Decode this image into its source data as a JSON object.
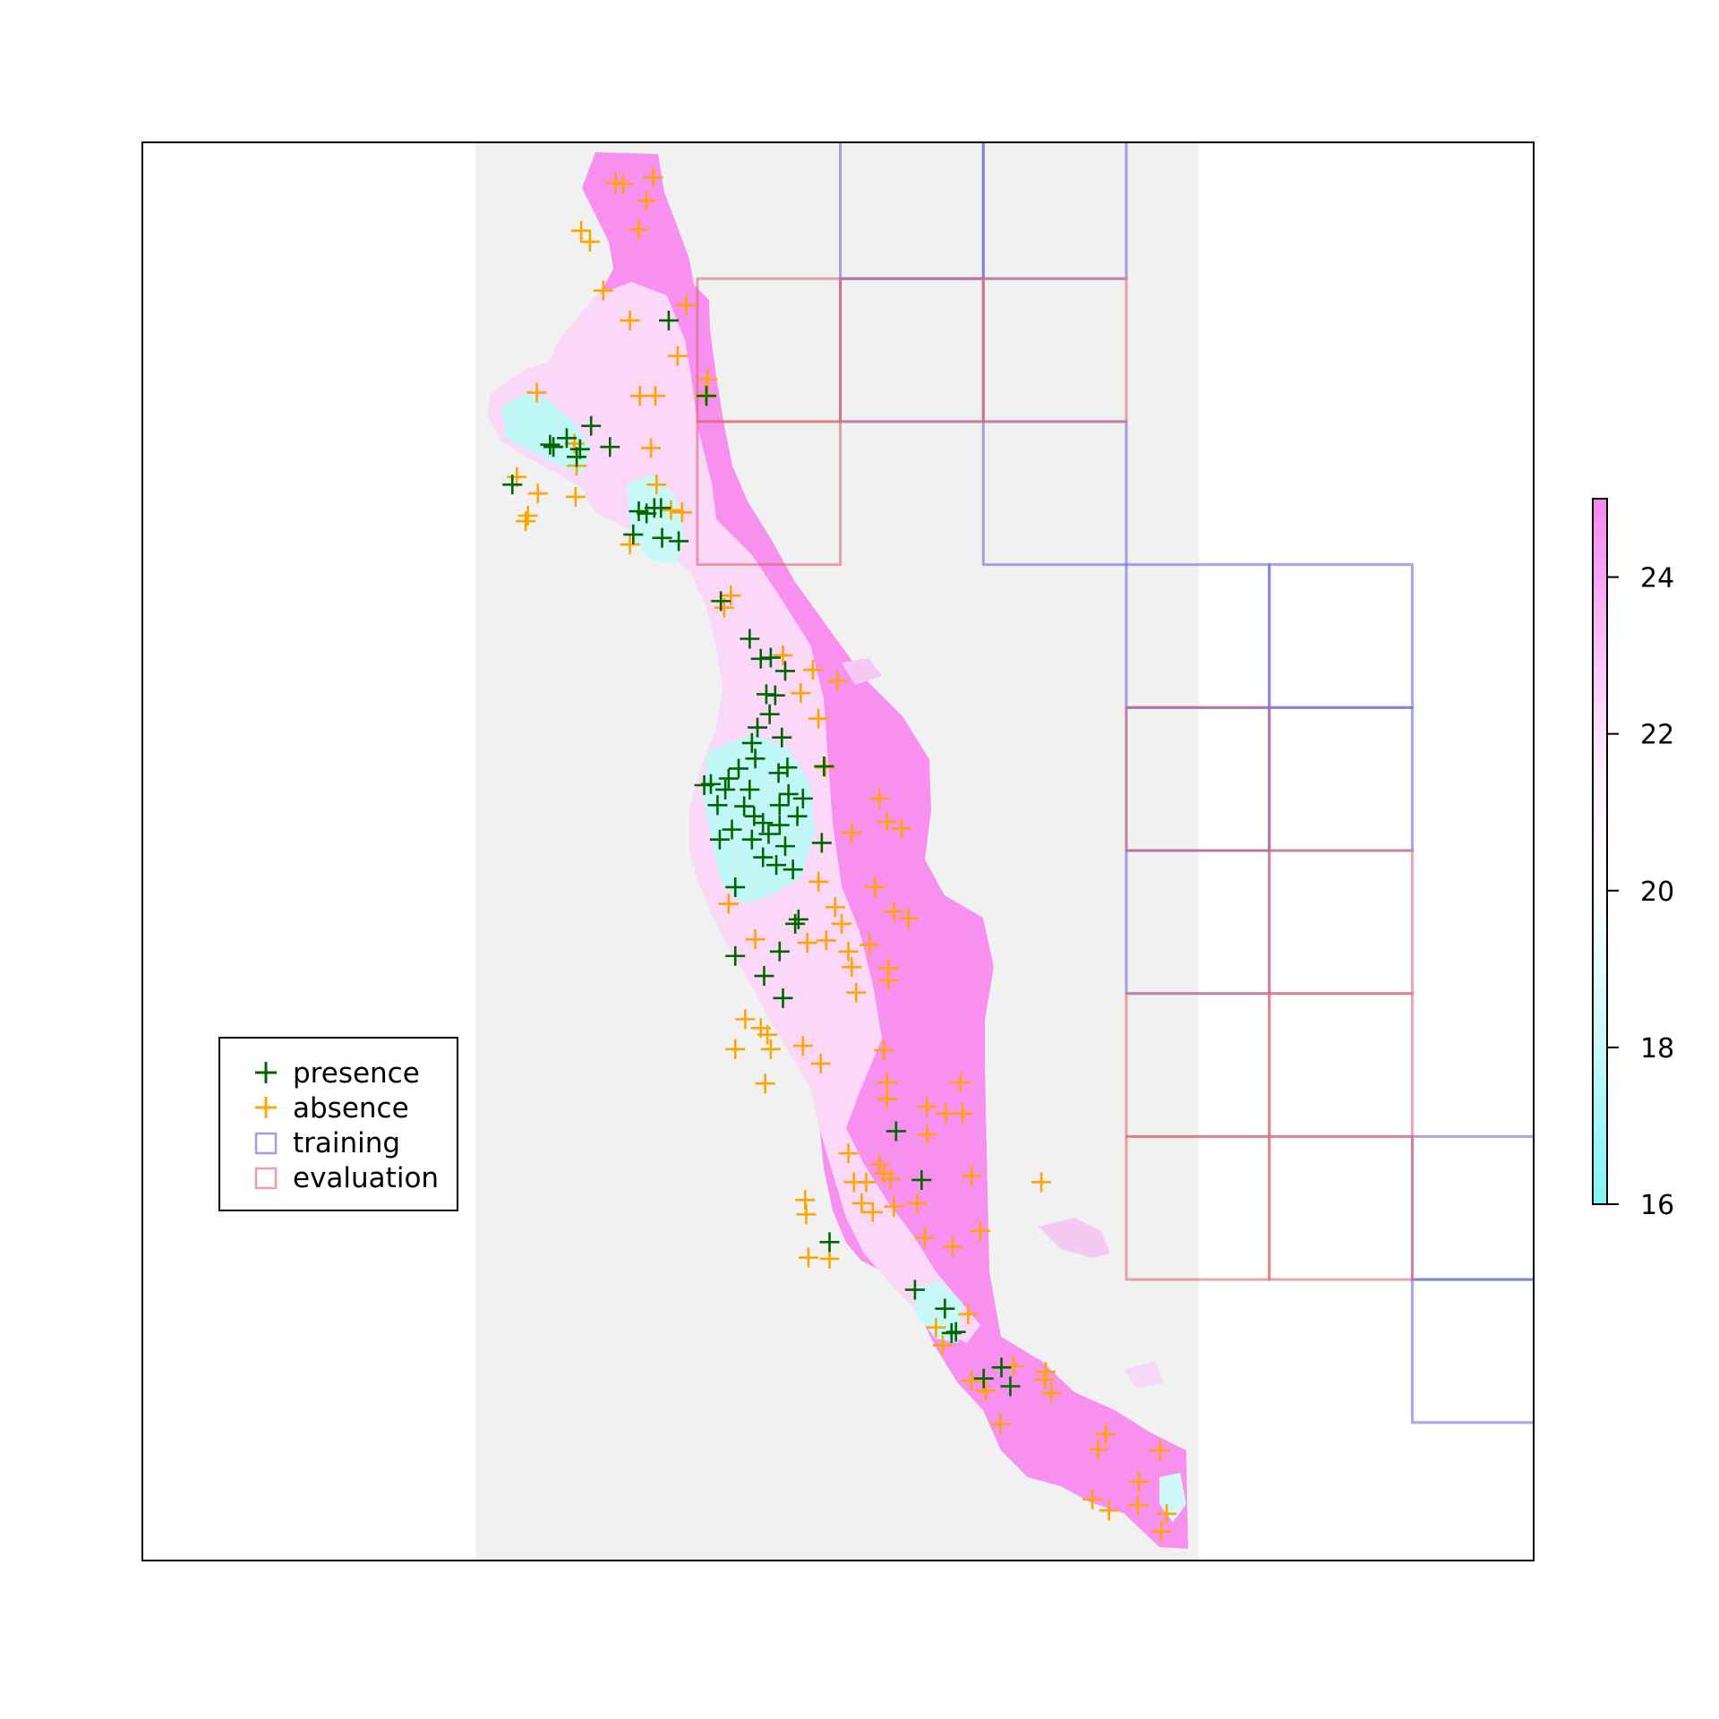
{
  "colors": {
    "presence": "#006400",
    "absence": "#ffa500",
    "training": "#6b6bdc",
    "evaluation": "#dc6b78",
    "background_raster": "#f0f0f0",
    "cold": "#7ff4f4",
    "mid": "#ffeeff",
    "warm": "#f488f0"
  },
  "legend": {
    "items": [
      {
        "label": "presence",
        "symbol": "cross",
        "color_key": "presence"
      },
      {
        "label": "absence",
        "symbol": "cross",
        "color_key": "absence"
      },
      {
        "label": "training",
        "symbol": "square",
        "color_key": "training"
      },
      {
        "label": "evaluation",
        "symbol": "square",
        "color_key": "evaluation"
      }
    ]
  },
  "colorbar": {
    "min": 16,
    "max": 25,
    "ticks": [
      "24",
      "22",
      "20",
      "18",
      "16"
    ],
    "tick_values": [
      24,
      22,
      20,
      18,
      16
    ]
  },
  "blocks": {
    "training": [
      [
        3,
        0
      ],
      [
        4,
        0
      ],
      [
        3,
        1
      ],
      [
        4,
        2
      ],
      [
        5,
        3
      ],
      [
        6,
        3
      ],
      [
        5,
        4
      ],
      [
        6,
        4
      ],
      [
        5,
        5
      ],
      [
        8,
        6
      ],
      [
        7,
        7
      ],
      [
        8,
        7
      ],
      [
        7,
        8
      ],
      [
        9,
        8
      ],
      [
        10,
        9
      ]
    ],
    "evaluation": [
      [
        2,
        1
      ],
      [
        3,
        1
      ],
      [
        4,
        1
      ],
      [
        2,
        2
      ],
      [
        5,
        4
      ],
      [
        6,
        5
      ],
      [
        5,
        6
      ],
      [
        6,
        6
      ],
      [
        5,
        7
      ],
      [
        6,
        7
      ],
      [
        8,
        9
      ],
      [
        9,
        9
      ]
    ]
  },
  "points": {
    "presence": [
      [
        603,
        289
      ],
      [
        637,
        357
      ],
      [
        533,
        384
      ],
      [
        496,
        401
      ],
      [
        499,
        403
      ],
      [
        511,
        395
      ],
      [
        520,
        412
      ],
      [
        523,
        405
      ],
      [
        550,
        403
      ],
      [
        462,
        437
      ],
      [
        576,
        461
      ],
      [
        583,
        463
      ],
      [
        590,
        458
      ],
      [
        596,
        458
      ],
      [
        571,
        482
      ],
      [
        597,
        485
      ],
      [
        612,
        488
      ],
      [
        650,
        542
      ],
      [
        676,
        576
      ],
      [
        686,
        594
      ],
      [
        695,
        593
      ],
      [
        708,
        605
      ],
      [
        691,
        626
      ],
      [
        699,
        627
      ],
      [
        694,
        644
      ],
      [
        683,
        656
      ],
      [
        678,
        670
      ],
      [
        705,
        665
      ],
      [
        681,
        684
      ],
      [
        666,
        693
      ],
      [
        657,
        702
      ],
      [
        641,
        707
      ],
      [
        635,
        708
      ],
      [
        654,
        712
      ],
      [
        647,
        726
      ],
      [
        676,
        712
      ],
      [
        702,
        697
      ],
      [
        710,
        692
      ],
      [
        711,
        716
      ],
      [
        724,
        720
      ],
      [
        703,
        726
      ],
      [
        671,
        727
      ],
      [
        680,
        736
      ],
      [
        688,
        742
      ],
      [
        660,
        748
      ],
      [
        649,
        757
      ],
      [
        678,
        757
      ],
      [
        693,
        752
      ],
      [
        703,
        744
      ],
      [
        719,
        736
      ],
      [
        741,
        760
      ],
      [
        688,
        773
      ],
      [
        700,
        780
      ],
      [
        715,
        784
      ],
      [
        663,
        800
      ],
      [
        717,
        833
      ],
      [
        720,
        829
      ],
      [
        703,
        858
      ],
      [
        663,
        862
      ],
      [
        689,
        880
      ],
      [
        706,
        900
      ],
      [
        808,
        1020
      ],
      [
        831,
        1064
      ],
      [
        748,
        1120
      ],
      [
        825,
        1163
      ],
      [
        852,
        1180
      ],
      [
        858,
        1202
      ],
      [
        862,
        1201
      ],
      [
        887,
        1243
      ],
      [
        903,
        1233
      ],
      [
        911,
        1250
      ],
      [
        743,
        691
      ],
      [
        708,
        763
      ]
    ],
    "absence": [
      [
        555,
        165
      ],
      [
        562,
        166
      ],
      [
        589,
        160
      ],
      [
        583,
        181
      ],
      [
        524,
        208
      ],
      [
        532,
        218
      ],
      [
        576,
        207
      ],
      [
        544,
        262
      ],
      [
        619,
        275
      ],
      [
        568,
        289
      ],
      [
        611,
        321
      ],
      [
        638,
        342
      ],
      [
        577,
        357
      ],
      [
        591,
        357
      ],
      [
        484,
        354
      ],
      [
        636,
        356
      ],
      [
        518,
        400
      ],
      [
        587,
        404
      ],
      [
        520,
        420
      ],
      [
        466,
        430
      ],
      [
        485,
        445
      ],
      [
        476,
        465
      ],
      [
        474,
        470
      ],
      [
        519,
        448
      ],
      [
        592,
        437
      ],
      [
        605,
        460
      ],
      [
        615,
        462
      ],
      [
        568,
        491
      ],
      [
        659,
        537
      ],
      [
        653,
        548
      ],
      [
        706,
        591
      ],
      [
        733,
        604
      ],
      [
        755,
        614
      ],
      [
        722,
        625
      ],
      [
        738,
        648
      ],
      [
        744,
        692
      ],
      [
        793,
        720
      ],
      [
        800,
        741
      ],
      [
        813,
        747
      ],
      [
        768,
        751
      ],
      [
        738,
        795
      ],
      [
        789,
        800
      ],
      [
        753,
        818
      ],
      [
        819,
        828
      ],
      [
        806,
        822
      ],
      [
        759,
        833
      ],
      [
        745,
        848
      ],
      [
        728,
        850
      ],
      [
        765,
        858
      ],
      [
        681,
        847
      ],
      [
        657,
        815
      ],
      [
        784,
        852
      ],
      [
        768,
        872
      ],
      [
        801,
        873
      ],
      [
        772,
        895
      ],
      [
        801,
        884
      ],
      [
        672,
        919
      ],
      [
        686,
        927
      ],
      [
        692,
        933
      ],
      [
        663,
        946
      ],
      [
        695,
        946
      ],
      [
        724,
        943
      ],
      [
        740,
        959
      ],
      [
        690,
        977
      ],
      [
        797,
        947
      ],
      [
        800,
        976
      ],
      [
        800,
        991
      ],
      [
        836,
        998
      ],
      [
        853,
        1004
      ],
      [
        868,
        1004
      ],
      [
        866,
        976
      ],
      [
        836,
        1023
      ],
      [
        765,
        1040
      ],
      [
        793,
        1050
      ],
      [
        797,
        1058
      ],
      [
        781,
        1066
      ],
      [
        770,
        1066
      ],
      [
        803,
        1063
      ],
      [
        876,
        1060
      ],
      [
        939,
        1066
      ],
      [
        726,
        1082
      ],
      [
        727,
        1095
      ],
      [
        777,
        1085
      ],
      [
        787,
        1093
      ],
      [
        806,
        1088
      ],
      [
        827,
        1085
      ],
      [
        834,
        1116
      ],
      [
        859,
        1124
      ],
      [
        884,
        1110
      ],
      [
        729,
        1134
      ],
      [
        748,
        1135
      ],
      [
        844,
        1197
      ],
      [
        850,
        1213
      ],
      [
        873,
        1185
      ],
      [
        876,
        1245
      ],
      [
        889,
        1254
      ],
      [
        914,
        1232
      ],
      [
        943,
        1237
      ],
      [
        948,
        1256
      ],
      [
        942,
        1244
      ],
      [
        902,
        1284
      ],
      [
        990,
        1307
      ],
      [
        997,
        1293
      ],
      [
        1046,
        1308
      ],
      [
        1027,
        1336
      ],
      [
        1026,
        1357
      ],
      [
        985,
        1352
      ],
      [
        1000,
        1362
      ],
      [
        1052,
        1365
      ],
      [
        1047,
        1381
      ]
    ]
  }
}
